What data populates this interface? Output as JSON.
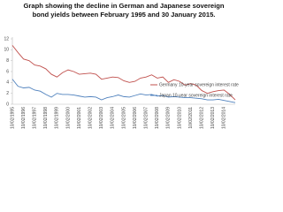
{
  "chart_data": {
    "type": "line",
    "title": "Graph showing the decline in German and Japanese sovereign bond yields between February 1995 and 30 January 2015.",
    "categories": [
      "10/02/1995",
      null,
      "10/02/1996",
      null,
      "10/02/1997",
      null,
      "10/02/1998",
      null,
      "10/02/1999",
      null,
      "10/02/2000",
      null,
      "10/02/2001",
      null,
      "10/02/2002",
      null,
      "10/02/2003",
      null,
      "10/02/2004",
      null,
      "10/02/2005",
      null,
      "10/02/2006",
      null,
      "10/02/2007",
      null,
      "10/02/2008",
      null,
      "10/02/2009",
      null,
      "10/02/2010",
      null,
      "10/02/2011",
      null,
      "10/02/2012",
      null,
      "10/02/2013",
      null,
      "10/02/2014",
      null,
      null
    ],
    "series": [
      {
        "name": "Germany 10-year sovereign interest rate",
        "color": "#c0504d",
        "values": [
          10.8,
          9.5,
          8.3,
          8.0,
          7.2,
          7.0,
          6.5,
          5.5,
          5.0,
          5.8,
          6.3,
          6.0,
          5.5,
          5.6,
          5.7,
          5.5,
          4.6,
          4.8,
          5.0,
          4.9,
          4.3,
          4.0,
          4.2,
          4.8,
          5.0,
          5.4,
          4.8,
          5.0,
          4.0,
          4.5,
          4.2,
          3.5,
          3.8,
          3.5,
          2.5,
          2.0,
          2.3,
          2.5,
          2.6,
          1.8,
          0.8
        ]
      },
      {
        "name": "Japan 10-year sovereign interest rate",
        "color": "#4f81bd",
        "values": [
          4.6,
          3.3,
          3.0,
          3.1,
          2.6,
          2.4,
          1.8,
          1.3,
          2.0,
          1.8,
          1.8,
          1.7,
          1.5,
          1.3,
          1.4,
          1.3,
          0.8,
          1.2,
          1.4,
          1.7,
          1.4,
          1.3,
          1.6,
          1.9,
          1.7,
          1.8,
          1.5,
          1.6,
          1.3,
          1.4,
          1.3,
          1.2,
          1.2,
          1.1,
          1.0,
          0.8,
          0.8,
          0.9,
          0.7,
          0.5,
          0.3
        ]
      }
    ],
    "ylim": [
      0,
      12
    ],
    "yticks": [
      0,
      2,
      4,
      6,
      8,
      10,
      12
    ],
    "grid": false,
    "legend": "right"
  }
}
